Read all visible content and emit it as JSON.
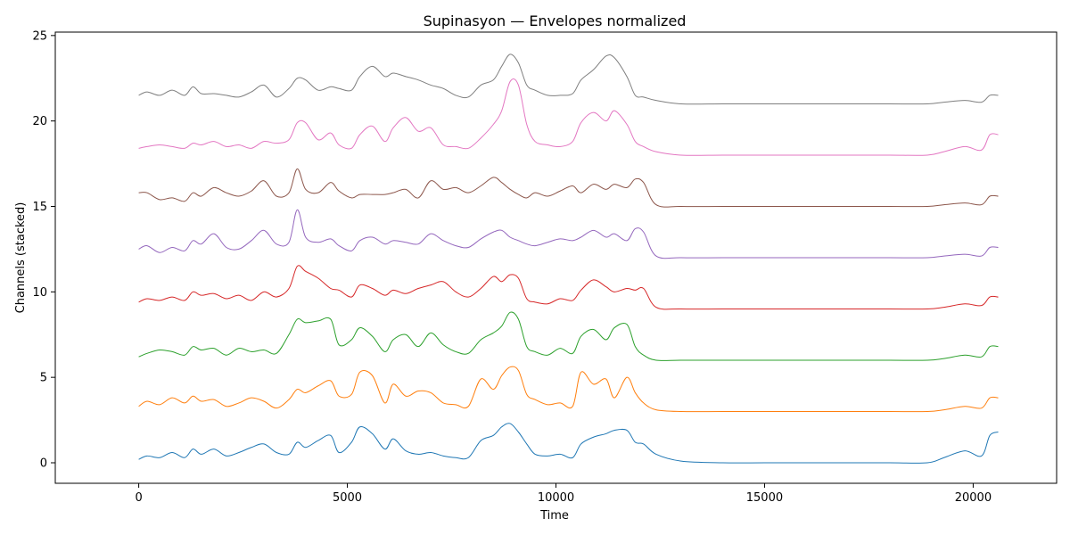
{
  "chart_data": {
    "type": "line",
    "title": "Supinasyon — Envelopes normalized",
    "xlabel": "Time",
    "ylabel": "Channels (stacked)",
    "xlim": [
      -2000,
      22000
    ],
    "ylim": [
      -1.2,
      25.2
    ],
    "xticks": [
      0,
      5000,
      10000,
      15000,
      20000
    ],
    "yticks": [
      0,
      5,
      10,
      15,
      20,
      25
    ],
    "grid": false,
    "legend": "none",
    "series": [
      {
        "color": "#1f77b4",
        "x": [
          0,
          200,
          500,
          800,
          1100,
          1300,
          1500,
          1800,
          2100,
          2400,
          2700,
          3000,
          3300,
          3600,
          3800,
          4000,
          4300,
          4600,
          4800,
          5100,
          5300,
          5600,
          5900,
          6100,
          6400,
          6700,
          7000,
          7300,
          7600,
          7900,
          8200,
          8500,
          8700,
          8900,
          9100,
          9300,
          9500,
          9800,
          10100,
          10400,
          10600,
          10900,
          11200,
          11400,
          11700,
          11900,
          12100,
          12400,
          13000,
          14000,
          15000,
          16000,
          17000,
          18000,
          18900,
          19300,
          19800,
          20200,
          20400,
          20600
        ],
        "values": [
          0.2,
          0.4,
          0.3,
          0.6,
          0.3,
          0.8,
          0.5,
          0.8,
          0.4,
          0.6,
          0.9,
          1.1,
          0.6,
          0.5,
          1.2,
          0.9,
          1.3,
          1.6,
          0.6,
          1.2,
          2.1,
          1.7,
          0.8,
          1.4,
          0.7,
          0.5,
          0.6,
          0.4,
          0.3,
          0.3,
          1.3,
          1.6,
          2.1,
          2.3,
          1.8,
          1.1,
          0.5,
          0.4,
          0.5,
          0.3,
          1.1,
          1.5,
          1.7,
          1.9,
          1.9,
          1.2,
          1.1,
          0.5,
          0.1,
          0.0,
          0.0,
          0.0,
          0.0,
          0.0,
          0.0,
          0.3,
          0.7,
          0.4,
          1.6,
          1.8
        ]
      },
      {
        "color": "#ff7f0e",
        "x": [
          0,
          200,
          500,
          800,
          1100,
          1300,
          1500,
          1800,
          2100,
          2400,
          2700,
          3000,
          3300,
          3600,
          3800,
          4000,
          4300,
          4600,
          4800,
          5100,
          5300,
          5600,
          5900,
          6100,
          6400,
          6700,
          7000,
          7300,
          7600,
          7900,
          8200,
          8500,
          8700,
          8900,
          9100,
          9300,
          9500,
          9800,
          10100,
          10400,
          10600,
          10900,
          11200,
          11400,
          11700,
          11900,
          12100,
          12400,
          13000,
          14000,
          15000,
          16000,
          17000,
          18000,
          18900,
          19300,
          19800,
          20200,
          20400,
          20600
        ],
        "values": [
          3.3,
          3.6,
          3.4,
          3.8,
          3.5,
          3.9,
          3.6,
          3.7,
          3.3,
          3.5,
          3.8,
          3.6,
          3.2,
          3.7,
          4.3,
          4.1,
          4.5,
          4.8,
          3.9,
          4.0,
          5.3,
          5.1,
          3.5,
          4.6,
          3.9,
          4.2,
          4.1,
          3.5,
          3.4,
          3.3,
          4.9,
          4.3,
          5.1,
          5.6,
          5.4,
          4.0,
          3.7,
          3.4,
          3.5,
          3.3,
          5.3,
          4.6,
          4.9,
          3.8,
          5.0,
          4.1,
          3.5,
          3.1,
          3.0,
          3.0,
          3.0,
          3.0,
          3.0,
          3.0,
          3.0,
          3.1,
          3.3,
          3.2,
          3.8,
          3.8
        ]
      },
      {
        "color": "#2ca02c",
        "x": [
          0,
          200,
          500,
          800,
          1100,
          1300,
          1500,
          1800,
          2100,
          2400,
          2700,
          3000,
          3300,
          3600,
          3800,
          4000,
          4300,
          4600,
          4800,
          5100,
          5300,
          5600,
          5900,
          6100,
          6400,
          6700,
          7000,
          7300,
          7600,
          7900,
          8200,
          8500,
          8700,
          8900,
          9100,
          9300,
          9500,
          9800,
          10100,
          10400,
          10600,
          10900,
          11200,
          11400,
          11700,
          11900,
          12100,
          12400,
          13000,
          14000,
          15000,
          16000,
          17000,
          18000,
          18900,
          19300,
          19800,
          20200,
          20400,
          20600
        ],
        "values": [
          6.2,
          6.4,
          6.6,
          6.5,
          6.3,
          6.8,
          6.6,
          6.7,
          6.3,
          6.7,
          6.5,
          6.6,
          6.4,
          7.5,
          8.4,
          8.2,
          8.3,
          8.4,
          6.9,
          7.2,
          7.9,
          7.4,
          6.5,
          7.2,
          7.5,
          6.8,
          7.6,
          6.9,
          6.5,
          6.4,
          7.2,
          7.6,
          8.0,
          8.8,
          8.4,
          6.8,
          6.5,
          6.3,
          6.7,
          6.4,
          7.4,
          7.8,
          7.2,
          7.9,
          8.1,
          6.8,
          6.3,
          6.0,
          6.0,
          6.0,
          6.0,
          6.0,
          6.0,
          6.0,
          6.0,
          6.1,
          6.3,
          6.2,
          6.8,
          6.8
        ]
      },
      {
        "color": "#d62728",
        "x": [
          0,
          200,
          500,
          800,
          1100,
          1300,
          1500,
          1800,
          2100,
          2400,
          2700,
          3000,
          3300,
          3600,
          3800,
          4000,
          4300,
          4600,
          4800,
          5100,
          5300,
          5600,
          5900,
          6100,
          6400,
          6700,
          7000,
          7300,
          7600,
          7900,
          8200,
          8500,
          8700,
          8900,
          9100,
          9300,
          9500,
          9800,
          10100,
          10400,
          10600,
          10900,
          11200,
          11400,
          11700,
          11900,
          12100,
          12400,
          13000,
          14000,
          15000,
          16000,
          17000,
          18000,
          18900,
          19300,
          19800,
          20200,
          20400,
          20600
        ],
        "values": [
          9.4,
          9.6,
          9.5,
          9.7,
          9.5,
          10.0,
          9.8,
          9.9,
          9.6,
          9.8,
          9.5,
          10.0,
          9.7,
          10.2,
          11.5,
          11.2,
          10.8,
          10.2,
          10.1,
          9.7,
          10.4,
          10.2,
          9.8,
          10.1,
          9.9,
          10.2,
          10.4,
          10.6,
          10.0,
          9.7,
          10.2,
          10.9,
          10.6,
          11.0,
          10.8,
          9.6,
          9.4,
          9.3,
          9.6,
          9.5,
          10.1,
          10.7,
          10.3,
          10.0,
          10.2,
          10.1,
          10.2,
          9.1,
          9.0,
          9.0,
          9.0,
          9.0,
          9.0,
          9.0,
          9.0,
          9.1,
          9.3,
          9.2,
          9.7,
          9.7
        ]
      },
      {
        "color": "#9467bd",
        "x": [
          0,
          200,
          500,
          800,
          1100,
          1300,
          1500,
          1800,
          2100,
          2400,
          2700,
          3000,
          3300,
          3600,
          3800,
          4000,
          4300,
          4600,
          4800,
          5100,
          5300,
          5600,
          5900,
          6100,
          6400,
          6700,
          7000,
          7300,
          7600,
          7900,
          8200,
          8500,
          8700,
          8900,
          9100,
          9300,
          9500,
          9800,
          10100,
          10400,
          10600,
          10900,
          11200,
          11400,
          11700,
          11900,
          12100,
          12400,
          13000,
          14000,
          15000,
          16000,
          17000,
          18000,
          18900,
          19300,
          19800,
          20200,
          20400,
          20600
        ],
        "values": [
          12.5,
          12.7,
          12.3,
          12.6,
          12.4,
          13.0,
          12.8,
          13.4,
          12.6,
          12.5,
          13.0,
          13.6,
          12.8,
          12.9,
          14.8,
          13.2,
          12.9,
          13.1,
          12.7,
          12.4,
          13.0,
          13.2,
          12.8,
          13.0,
          12.9,
          12.8,
          13.4,
          13.0,
          12.7,
          12.6,
          13.1,
          13.5,
          13.6,
          13.2,
          13.0,
          12.8,
          12.7,
          12.9,
          13.1,
          13.0,
          13.2,
          13.6,
          13.2,
          13.4,
          13.0,
          13.7,
          13.5,
          12.1,
          12.0,
          12.0,
          12.0,
          12.0,
          12.0,
          12.0,
          12.0,
          12.1,
          12.2,
          12.1,
          12.6,
          12.6
        ]
      },
      {
        "color": "#8c564b",
        "x": [
          0,
          200,
          500,
          800,
          1100,
          1300,
          1500,
          1800,
          2100,
          2400,
          2700,
          3000,
          3300,
          3600,
          3800,
          4000,
          4300,
          4600,
          4800,
          5100,
          5300,
          5600,
          5900,
          6100,
          6400,
          6700,
          7000,
          7300,
          7600,
          7900,
          8200,
          8500,
          8700,
          8900,
          9100,
          9300,
          9500,
          9800,
          10100,
          10400,
          10600,
          10900,
          11200,
          11400,
          11700,
          11900,
          12100,
          12400,
          13000,
          14000,
          15000,
          16000,
          17000,
          18000,
          18900,
          19300,
          19800,
          20200,
          20400,
          20600
        ],
        "values": [
          15.8,
          15.8,
          15.4,
          15.5,
          15.3,
          15.8,
          15.6,
          16.1,
          15.8,
          15.6,
          15.9,
          16.5,
          15.6,
          15.8,
          17.2,
          16.0,
          15.8,
          16.4,
          15.9,
          15.5,
          15.7,
          15.7,
          15.7,
          15.8,
          16.0,
          15.5,
          16.5,
          16.0,
          16.1,
          15.8,
          16.2,
          16.7,
          16.4,
          16.0,
          15.7,
          15.5,
          15.8,
          15.6,
          15.9,
          16.2,
          15.8,
          16.3,
          16.0,
          16.3,
          16.1,
          16.6,
          16.4,
          15.1,
          15.0,
          15.0,
          15.0,
          15.0,
          15.0,
          15.0,
          15.0,
          15.1,
          15.2,
          15.1,
          15.6,
          15.6
        ]
      },
      {
        "color": "#e377c2",
        "x": [
          0,
          200,
          500,
          800,
          1100,
          1300,
          1500,
          1800,
          2100,
          2400,
          2700,
          3000,
          3300,
          3600,
          3800,
          4000,
          4300,
          4600,
          4800,
          5100,
          5300,
          5600,
          5900,
          6100,
          6400,
          6700,
          7000,
          7300,
          7600,
          7900,
          8200,
          8500,
          8700,
          8900,
          9100,
          9300,
          9500,
          9800,
          10100,
          10400,
          10600,
          10900,
          11200,
          11400,
          11700,
          11900,
          12100,
          12400,
          13000,
          14000,
          15000,
          16000,
          17000,
          18000,
          18900,
          19300,
          19800,
          20200,
          20400,
          20600
        ],
        "values": [
          18.4,
          18.5,
          18.6,
          18.5,
          18.4,
          18.7,
          18.6,
          18.8,
          18.5,
          18.6,
          18.4,
          18.8,
          18.7,
          18.9,
          19.9,
          19.9,
          18.9,
          19.3,
          18.6,
          18.4,
          19.2,
          19.7,
          18.8,
          19.6,
          20.2,
          19.4,
          19.6,
          18.6,
          18.5,
          18.4,
          19.0,
          19.8,
          20.6,
          22.3,
          22.1,
          19.8,
          18.8,
          18.6,
          18.5,
          18.8,
          19.9,
          20.5,
          20.0,
          20.6,
          19.8,
          18.8,
          18.5,
          18.2,
          18.0,
          18.0,
          18.0,
          18.0,
          18.0,
          18.0,
          18.0,
          18.2,
          18.5,
          18.3,
          19.2,
          19.2
        ]
      },
      {
        "color": "#7f7f7f",
        "x": [
          0,
          200,
          500,
          800,
          1100,
          1300,
          1500,
          1800,
          2100,
          2400,
          2700,
          3000,
          3300,
          3600,
          3800,
          4000,
          4300,
          4600,
          4800,
          5100,
          5300,
          5600,
          5900,
          6100,
          6400,
          6700,
          7000,
          7300,
          7600,
          7900,
          8200,
          8500,
          8700,
          8900,
          9100,
          9300,
          9500,
          9800,
          10100,
          10400,
          10600,
          10900,
          11200,
          11400,
          11700,
          11900,
          12100,
          12400,
          13000,
          14000,
          15000,
          16000,
          17000,
          18000,
          18900,
          19300,
          19800,
          20200,
          20400,
          20600
        ],
        "values": [
          21.5,
          21.7,
          21.5,
          21.8,
          21.5,
          22.0,
          21.6,
          21.6,
          21.5,
          21.4,
          21.7,
          22.1,
          21.4,
          21.9,
          22.5,
          22.4,
          21.8,
          22.0,
          21.9,
          21.8,
          22.6,
          23.2,
          22.6,
          22.8,
          22.6,
          22.4,
          22.1,
          21.9,
          21.5,
          21.4,
          22.1,
          22.4,
          23.2,
          23.9,
          23.4,
          22.1,
          21.8,
          21.5,
          21.5,
          21.6,
          22.4,
          23.0,
          23.8,
          23.7,
          22.6,
          21.5,
          21.4,
          21.2,
          21.0,
          21.0,
          21.0,
          21.0,
          21.0,
          21.0,
          21.0,
          21.1,
          21.2,
          21.1,
          21.5,
          21.5
        ]
      }
    ]
  }
}
